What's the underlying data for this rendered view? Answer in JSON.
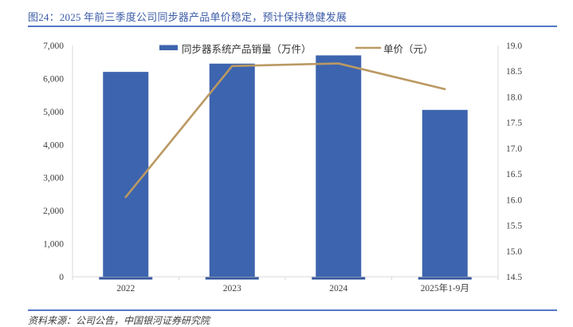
{
  "figure": {
    "title": "图24：2025 年前三季度公司同步器产品单价稳定，预计保持稳健发展",
    "source": "资料来源：公司公告，中国银河证券研究院"
  },
  "colors": {
    "bar": "#3D64AE",
    "bar_base_strip": "#35589E",
    "line": "#BB9963",
    "title_text": "#3C5CA8",
    "divider": "#5577C5",
    "axis_line": "#D9D9D9",
    "tick_text": "#404040",
    "legend_text": "#333333"
  },
  "chart_data": {
    "type": "bar+line combo, dual axis",
    "categories": [
      "2022",
      "2023",
      "2024",
      "2025年1-9月"
    ],
    "series": [
      {
        "name": "同步器系统产品销量（万件）",
        "type": "bar",
        "axis": "left",
        "values": [
          6200,
          6450,
          6700,
          5050
        ]
      },
      {
        "name": "单价（元）",
        "type": "line",
        "axis": "right",
        "values": [
          16.05,
          18.6,
          18.65,
          18.15
        ]
      }
    ],
    "left_axis": {
      "min": 0,
      "max": 7000,
      "step": 1000,
      "tick_labels": [
        "0",
        "1,000",
        "2,000",
        "3,000",
        "4,000",
        "5,000",
        "6,000",
        "7,000"
      ]
    },
    "right_axis": {
      "min": 14.5,
      "max": 19.0,
      "step": 0.5,
      "tick_labels": [
        "14.5",
        "15.0",
        "15.5",
        "16.0",
        "16.5",
        "17.0",
        "17.5",
        "18.0",
        "18.5",
        "19.0"
      ]
    },
    "legend": [
      {
        "label": "同步器系统产品销量（万件）",
        "swatch": "bar"
      },
      {
        "label": "单价（元）",
        "swatch": "line"
      }
    ],
    "grid": false,
    "legend_position": "top-center"
  }
}
